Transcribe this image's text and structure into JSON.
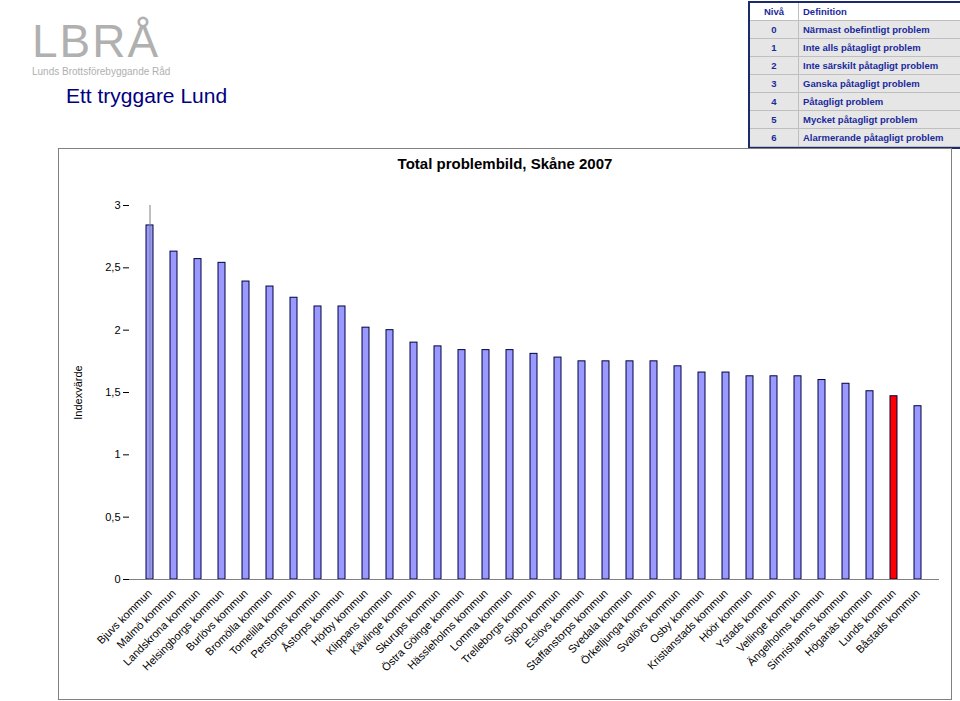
{
  "header": {
    "logo": "LBRÅ",
    "logo_subtitle": "Lunds Brottsförebyggande Råd",
    "tagline": "Ett tryggare Lund"
  },
  "level_table": {
    "columns": [
      "Nivå",
      "Definition"
    ],
    "rows": [
      [
        0,
        "Närmast obefintligt problem"
      ],
      [
        1,
        "Inte alls påtagligt problem"
      ],
      [
        2,
        "Inte särskilt påtagligt problem"
      ],
      [
        3,
        "Ganska påtagligt problem"
      ],
      [
        4,
        "Påtagligt problem"
      ],
      [
        5,
        "Mycket påtagligt problem"
      ],
      [
        6,
        "Alarmerande påtagligt problem"
      ]
    ]
  },
  "chart_data": {
    "type": "bar",
    "title": "Total problembild, Skåne 2007",
    "y_label": "Indexvärde",
    "categories": [
      "Bjuvs kommun",
      "Malmö kommun",
      "Landskrona kommun",
      "Helsingborgs kommun",
      "Burlövs kommun",
      "Bromölla kommun",
      "Tomelilla kommun",
      "Perstorps kommun",
      "Åstorps kommun",
      "Hörby kommun",
      "Klippans kommun",
      "Kävlinge kommun",
      "Skurups kommun",
      "Östra Göinge kommun",
      "Hässleholms kommun",
      "Lomma kommun",
      "Trelleborgs kommun",
      "Sjöbo kommun",
      "Eslövs kommun",
      "Staffanstorps kommun",
      "Svedala kommun",
      "Örkelljunga kommun",
      "Svalövs kommun",
      "Osby kommun",
      "Kristianstads kommun",
      "Höör kommun",
      "Ystads kommun",
      "Vellinge kommun",
      "Ängelholms kommun",
      "Simrishamns kommun",
      "Höganäs kommun",
      "Lunds kommun",
      "Båstads kommun"
    ],
    "values": [
      2.84,
      2.63,
      2.57,
      2.54,
      2.39,
      2.35,
      2.26,
      2.19,
      2.19,
      2.02,
      2.0,
      1.9,
      1.87,
      1.84,
      1.84,
      1.84,
      1.81,
      1.78,
      1.75,
      1.75,
      1.75,
      1.75,
      1.71,
      1.66,
      1.66,
      1.63,
      1.63,
      1.63,
      1.6,
      1.57,
      1.51,
      1.47,
      1.39
    ],
    "colors": [
      "#9999ff",
      "#9999ff",
      "#9999ff",
      "#9999ff",
      "#9999ff",
      "#9999ff",
      "#9999ff",
      "#9999ff",
      "#9999ff",
      "#9999ff",
      "#9999ff",
      "#9999ff",
      "#9999ff",
      "#9999ff",
      "#9999ff",
      "#9999ff",
      "#9999ff",
      "#9999ff",
      "#9999ff",
      "#9999ff",
      "#9999ff",
      "#9999ff",
      "#9999ff",
      "#9999ff",
      "#9999ff",
      "#9999ff",
      "#9999ff",
      "#9999ff",
      "#9999ff",
      "#9999ff",
      "#9999ff",
      "#ff0000",
      "#9999ff"
    ],
    "ylim": [
      0,
      3
    ],
    "yticks": [
      0,
      {
        "value": 0.5,
        "label": "0,5"
      },
      1,
      {
        "value": 1.5,
        "label": "1,5"
      },
      2,
      {
        "value": 2.5,
        "label": "2,5"
      },
      3
    ],
    "grid": false
  }
}
